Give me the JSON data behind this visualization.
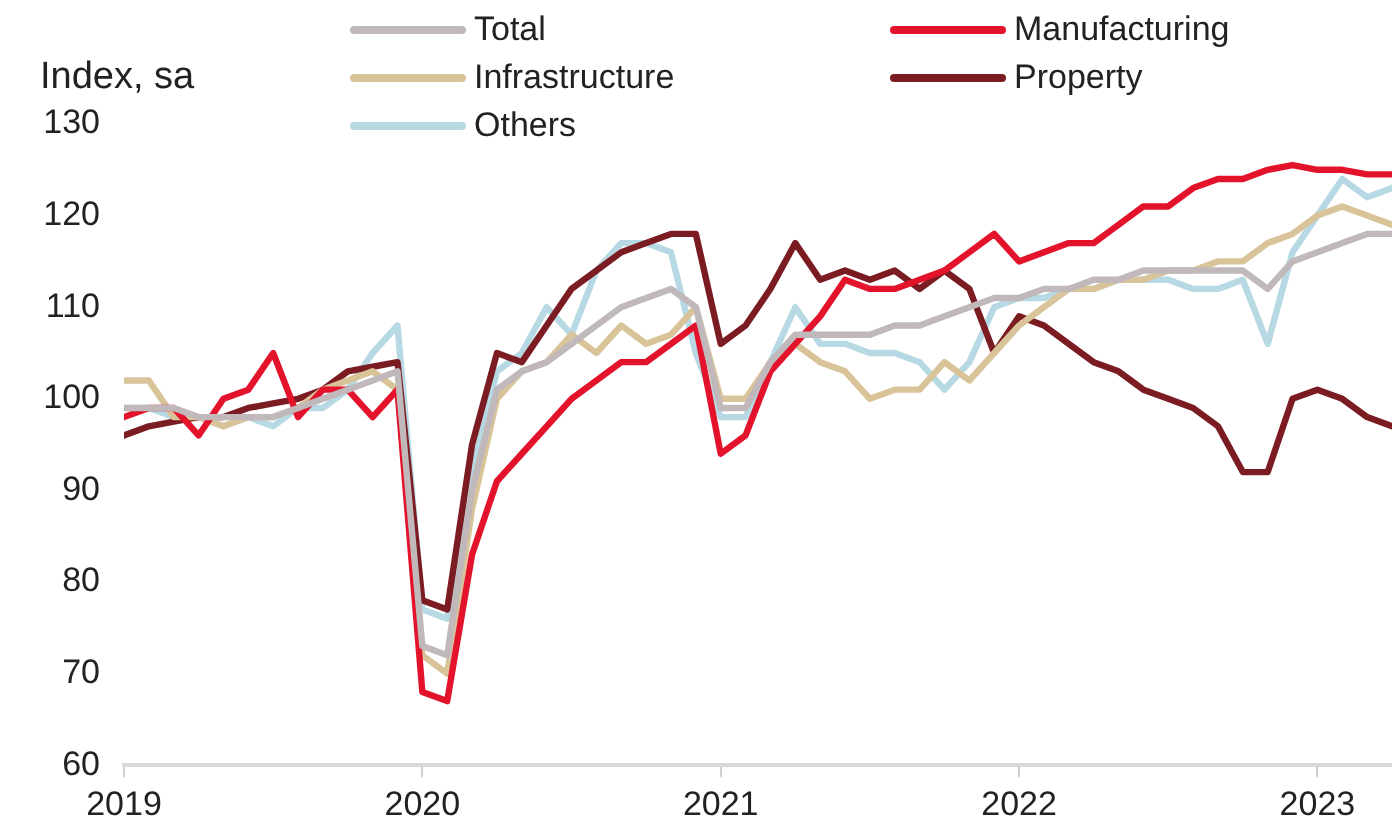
{
  "chart_data": {
    "type": "line",
    "ylabel": "Index, sa",
    "x": [
      "2019-01",
      "2019-02",
      "2019-03",
      "2019-04",
      "2019-05",
      "2019-06",
      "2019-07",
      "2019-08",
      "2019-09",
      "2019-10",
      "2019-11",
      "2019-12",
      "2020-01",
      "2020-02",
      "2020-03",
      "2020-04",
      "2020-05",
      "2020-06",
      "2020-07",
      "2020-08",
      "2020-09",
      "2020-10",
      "2020-11",
      "2020-12",
      "2021-01",
      "2021-02",
      "2021-03",
      "2021-04",
      "2021-05",
      "2021-06",
      "2021-07",
      "2021-08",
      "2021-09",
      "2021-10",
      "2021-11",
      "2021-12",
      "2022-01",
      "2022-02",
      "2022-03",
      "2022-04",
      "2022-05",
      "2022-06",
      "2022-07",
      "2022-08",
      "2022-09",
      "2022-10",
      "2022-11",
      "2022-12",
      "2023-01",
      "2023-02",
      "2023-03",
      "2023-04"
    ],
    "series": [
      {
        "name": "Total",
        "color": "#c0b8bb",
        "values": [
          99,
          99,
          99,
          98,
          98,
          98,
          98,
          99,
          100,
          101,
          102,
          103,
          73,
          72,
          90,
          101,
          103,
          104,
          106,
          108,
          110,
          111,
          112,
          110,
          99,
          99,
          104,
          107,
          107,
          107,
          107,
          108,
          108,
          109,
          110,
          111,
          111,
          112,
          112,
          113,
          113,
          114,
          114,
          114,
          114,
          114,
          112,
          115,
          116,
          117,
          118,
          118
        ]
      },
      {
        "name": "Manufacturing",
        "color": "#e3132c",
        "values": [
          98,
          99,
          99,
          96,
          100,
          101,
          105,
          98,
          101,
          101,
          98,
          101,
          68,
          67,
          83,
          91,
          94,
          97,
          100,
          102,
          104,
          104,
          106,
          108,
          94,
          96,
          103,
          106,
          109,
          113,
          112,
          112,
          113,
          114,
          116,
          118,
          115,
          116,
          117,
          117,
          119,
          121,
          121,
          123,
          124,
          124,
          125,
          125.5,
          125,
          125,
          124.5,
          124.5
        ]
      },
      {
        "name": "Infrastructure",
        "color": "#d9c49a",
        "values": [
          102,
          102,
          98,
          98,
          97,
          98,
          98,
          99,
          101,
          102,
          103,
          101,
          72,
          70,
          88,
          100,
          103,
          104,
          107,
          105,
          108,
          106,
          107,
          110,
          100,
          100,
          104,
          106,
          104,
          103,
          100,
          101,
          101,
          104,
          102,
          105,
          108,
          110,
          112,
          112,
          113,
          113,
          114,
          114,
          115,
          115,
          117,
          118,
          120,
          121,
          120,
          119
        ]
      },
      {
        "name": "Property",
        "color": "#7b1c22",
        "values": [
          96,
          97,
          97.5,
          98,
          98,
          99,
          99.5,
          100,
          101,
          103,
          103.5,
          104,
          78,
          77,
          95,
          105,
          104,
          108,
          112,
          114,
          116,
          117,
          118,
          118,
          106,
          108,
          112,
          117,
          113,
          114,
          113,
          114,
          112,
          114,
          112,
          105,
          109,
          108,
          106,
          104,
          103,
          101,
          100,
          99,
          97,
          92,
          92,
          100,
          101,
          100,
          98,
          97
        ]
      },
      {
        "name": "Others",
        "color": "#b6d9e3",
        "values": [
          99,
          99,
          98,
          98,
          97,
          98,
          97,
          99,
          99,
          101,
          105,
          108,
          77,
          76,
          92,
          103,
          105,
          110,
          107,
          114,
          117,
          117,
          116,
          105,
          98,
          98,
          104,
          110,
          106,
          106,
          105,
          105,
          104,
          101,
          104,
          110,
          111,
          111,
          112,
          112,
          113,
          113,
          113,
          112,
          112,
          113,
          106,
          116,
          120,
          124,
          122,
          123
        ]
      }
    ],
    "xlim": [
      "2019-01",
      "2023-04"
    ],
    "xticks": [
      "2019",
      "2020",
      "2021",
      "2022",
      "2023"
    ],
    "ylim": [
      60,
      130
    ],
    "yticks": [
      60,
      70,
      80,
      90,
      100,
      110,
      120,
      130
    ],
    "grid": false,
    "legend": "top",
    "marker": "none",
    "line_style": "solid"
  }
}
